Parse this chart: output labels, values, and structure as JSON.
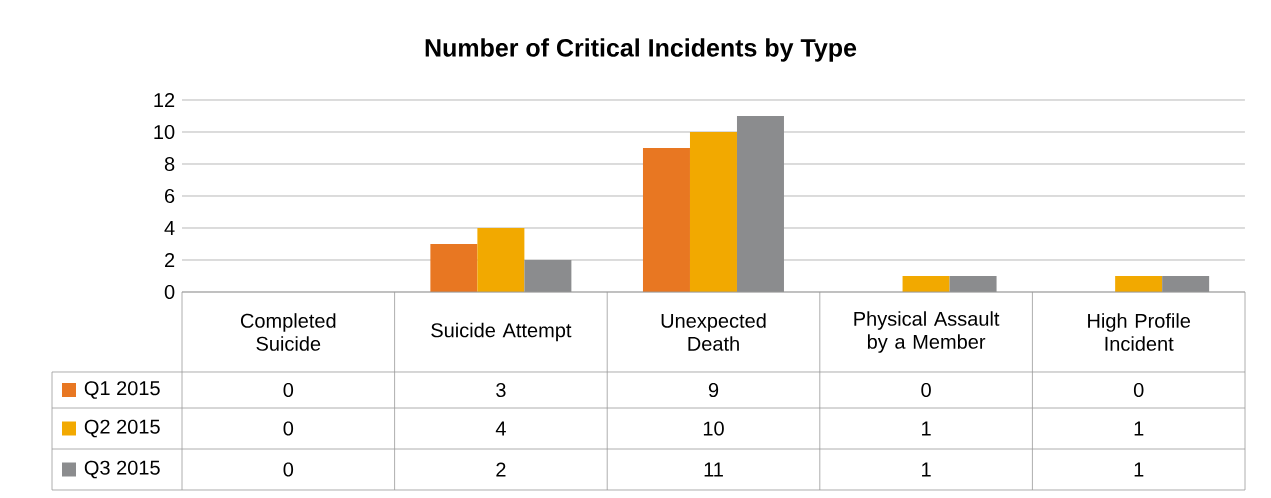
{
  "chart_data": {
    "type": "bar",
    "title": "Number of Critical Incidents by Type",
    "categories": [
      "Completed Suicide",
      "Suicide Attempt",
      "Unexpected Death",
      "Physical Assault by a Member",
      "High Profile Incident"
    ],
    "series": [
      {
        "name": "Q1 2015",
        "color": "#e87722",
        "values": [
          0,
          3,
          9,
          0,
          0
        ]
      },
      {
        "name": "Q2 2015",
        "color": "#f2a900",
        "values": [
          0,
          4,
          10,
          1,
          1
        ]
      },
      {
        "name": "Q3 2015",
        "color": "#8b8c8e",
        "values": [
          0,
          2,
          11,
          1,
          1
        ]
      }
    ],
    "ylim": [
      0,
      12
    ],
    "yticks": [
      0,
      2,
      4,
      6,
      8,
      10,
      12
    ],
    "grid": "y",
    "legend": "bottom",
    "data_labels": true
  }
}
